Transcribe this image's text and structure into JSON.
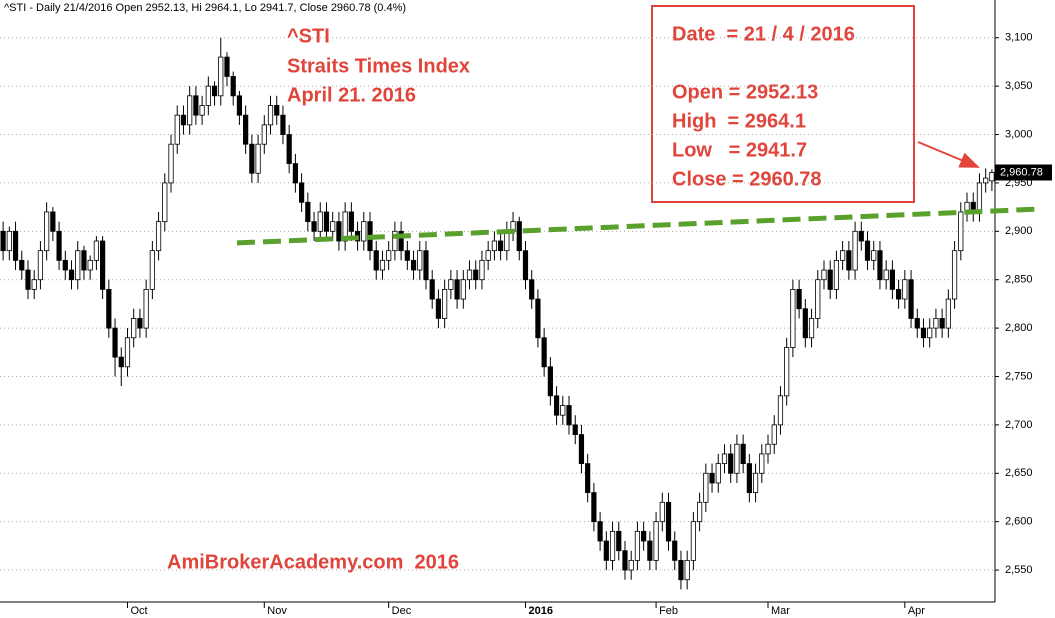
{
  "chart_data": {
    "type": "candlestick",
    "title": "^STI - Daily 21/4/2016 Open 2952.13, Hi 2964.1, Lo 2941.7, Close 2960.78 (0.4%)",
    "annotations": [
      "^STI",
      "Straits Times Index",
      "April 21. 2016"
    ],
    "info_box": [
      "Date  = 21 / 4 / 2016",
      "Open = 2952.13",
      "High  = 2964.1",
      "Low   = 2941.7",
      "Close = 2960.78"
    ],
    "watermark": "AmiBrokerAcademy.com  2016",
    "price_marker": {
      "value": 2960.78,
      "label": "2,960.78"
    },
    "trendline": {
      "color": "#5aa02c",
      "values": [
        2888,
        2923
      ]
    },
    "ylim": [
      2517,
      3139
    ],
    "yticks": [
      {
        "value": 2550,
        "label": "2,550"
      },
      {
        "value": 2600,
        "label": "2,600"
      },
      {
        "value": 2650,
        "label": "2,650"
      },
      {
        "value": 2700,
        "label": "2,700"
      },
      {
        "value": 2750,
        "label": "2,750"
      },
      {
        "value": 2800,
        "label": "2,800"
      },
      {
        "value": 2850,
        "label": "2,850"
      },
      {
        "value": 2900,
        "label": "2,900"
      },
      {
        "value": 2950,
        "label": "2,950"
      },
      {
        "value": 3000,
        "label": "3,000"
      },
      {
        "value": 3050,
        "label": "3,050"
      },
      {
        "value": 3100,
        "label": "3,100"
      }
    ],
    "grid": true,
    "categories": [
      null,
      null,
      null,
      null,
      null,
      null,
      null,
      null,
      null,
      null,
      null,
      null,
      null,
      null,
      null,
      null,
      null,
      null,
      null,
      null,
      "Oct",
      null,
      null,
      null,
      null,
      null,
      null,
      null,
      null,
      null,
      null,
      null,
      null,
      null,
      null,
      null,
      null,
      null,
      null,
      null,
      null,
      null,
      "Nov",
      null,
      null,
      null,
      null,
      null,
      null,
      null,
      null,
      null,
      null,
      null,
      null,
      null,
      null,
      null,
      null,
      null,
      null,
      null,
      "Dec",
      null,
      null,
      null,
      null,
      null,
      null,
      null,
      null,
      null,
      null,
      null,
      null,
      null,
      null,
      null,
      null,
      null,
      null,
      null,
      null,
      null,
      "2016",
      null,
      null,
      null,
      null,
      null,
      null,
      null,
      null,
      null,
      null,
      null,
      null,
      null,
      null,
      null,
      null,
      null,
      null,
      null,
      null,
      "Feb",
      null,
      null,
      null,
      null,
      null,
      null,
      null,
      null,
      null,
      null,
      null,
      null,
      null,
      null,
      null,
      null,
      null,
      "Mar",
      null,
      null,
      null,
      null,
      null,
      null,
      null,
      null,
      null,
      null,
      null,
      null,
      null,
      null,
      null,
      null,
      null,
      null,
      null,
      null,
      null,
      "Apr",
      null,
      null,
      null,
      null,
      null,
      null,
      null,
      null,
      null,
      null,
      null,
      null,
      null,
      null
    ],
    "open": [
      2900,
      2880,
      2900,
      2870,
      2860,
      2840,
      2850,
      2880,
      2920,
      2900,
      2870,
      2860,
      2850,
      2880,
      2860,
      2870,
      2890,
      2840,
      2800,
      2770,
      2760,
      2790,
      2810,
      2800,
      2840,
      2880,
      2910,
      2950,
      2990,
      3020,
      3010,
      3040,
      3020,
      3030,
      3050,
      3040,
      3080,
      3060,
      3040,
      3020,
      2990,
      2960,
      2990,
      3010,
      3030,
      3020,
      3000,
      2970,
      2950,
      2930,
      2910,
      2900,
      2920,
      2900,
      2910,
      2890,
      2920,
      2900,
      2890,
      2910,
      2880,
      2860,
      2870,
      2880,
      2900,
      2880,
      2870,
      2860,
      2880,
      2850,
      2830,
      2810,
      2840,
      2850,
      2830,
      2850,
      2860,
      2850,
      2870,
      2880,
      2890,
      2880,
      2900,
      2910,
      2880,
      2850,
      2830,
      2790,
      2760,
      2730,
      2710,
      2720,
      2700,
      2690,
      2660,
      2630,
      2600,
      2580,
      2560,
      2590,
      2570,
      2550,
      2560,
      2590,
      2580,
      2560,
      2600,
      2620,
      2580,
      2560,
      2540,
      2560,
      2600,
      2620,
      2650,
      2640,
      2660,
      2670,
      2650,
      2680,
      2660,
      2630,
      2650,
      2670,
      2680,
      2700,
      2730,
      2780,
      2840,
      2820,
      2790,
      2810,
      2850,
      2860,
      2840,
      2870,
      2880,
      2860,
      2900,
      2890,
      2870,
      2880,
      2850,
      2860,
      2840,
      2830,
      2850,
      2810,
      2800,
      2790,
      2800,
      2810,
      2800,
      2830,
      2880,
      2920,
      2930,
      2920,
      2950,
      2952.13
    ],
    "high": [
      2910,
      2905,
      2910,
      2880,
      2870,
      2860,
      2890,
      2930,
      2925,
      2910,
      2880,
      2870,
      2890,
      2885,
      2875,
      2895,
      2895,
      2850,
      2810,
      2780,
      2800,
      2820,
      2820,
      2850,
      2890,
      2920,
      2960,
      3000,
      3030,
      3030,
      3050,
      3050,
      3040,
      3060,
      3055,
      3100,
      3085,
      3065,
      3045,
      3030,
      3000,
      3000,
      3020,
      3040,
      3040,
      3030,
      3010,
      2980,
      2960,
      2940,
      2920,
      2930,
      2930,
      2920,
      2920,
      2930,
      2930,
      2910,
      2920,
      2920,
      2890,
      2880,
      2890,
      2910,
      2910,
      2890,
      2880,
      2890,
      2890,
      2860,
      2840,
      2850,
      2860,
      2860,
      2860,
      2870,
      2870,
      2880,
      2890,
      2900,
      2900,
      2910,
      2920,
      2915,
      2890,
      2860,
      2840,
      2800,
      2770,
      2740,
      2730,
      2730,
      2710,
      2700,
      2670,
      2640,
      2610,
      2590,
      2600,
      2600,
      2580,
      2570,
      2600,
      2600,
      2590,
      2610,
      2630,
      2630,
      2590,
      2570,
      2570,
      2610,
      2630,
      2660,
      2660,
      2670,
      2680,
      2680,
      2690,
      2690,
      2670,
      2660,
      2680,
      2690,
      2710,
      2740,
      2790,
      2850,
      2850,
      2830,
      2820,
      2860,
      2870,
      2870,
      2880,
      2890,
      2890,
      2910,
      2910,
      2900,
      2890,
      2890,
      2870,
      2870,
      2850,
      2860,
      2860,
      2820,
      2810,
      2810,
      2820,
      2820,
      2840,
      2890,
      2930,
      2940,
      2940,
      2960,
      2965,
      2964.1
    ],
    "low": [
      2870,
      2870,
      2860,
      2850,
      2830,
      2830,
      2840,
      2870,
      2890,
      2860,
      2850,
      2840,
      2840,
      2850,
      2850,
      2860,
      2830,
      2790,
      2750,
      2740,
      2750,
      2780,
      2790,
      2790,
      2830,
      2870,
      2900,
      2940,
      2980,
      3000,
      3000,
      3010,
      3010,
      3020,
      3030,
      3030,
      3050,
      3030,
      3010,
      2980,
      2950,
      2950,
      2980,
      3000,
      3010,
      2990,
      2960,
      2940,
      2920,
      2900,
      2890,
      2890,
      2890,
      2890,
      2880,
      2880,
      2890,
      2880,
      2880,
      2870,
      2850,
      2850,
      2860,
      2870,
      2870,
      2860,
      2850,
      2850,
      2840,
      2820,
      2800,
      2800,
      2830,
      2820,
      2820,
      2840,
      2840,
      2840,
      2860,
      2870,
      2870,
      2870,
      2890,
      2870,
      2840,
      2820,
      2780,
      2750,
      2720,
      2700,
      2700,
      2690,
      2680,
      2650,
      2620,
      2590,
      2570,
      2550,
      2550,
      2560,
      2540,
      2540,
      2550,
      2570,
      2550,
      2550,
      2590,
      2570,
      2550,
      2530,
      2530,
      2550,
      2590,
      2610,
      2630,
      2630,
      2650,
      2640,
      2640,
      2650,
      2620,
      2620,
      2640,
      2660,
      2670,
      2690,
      2720,
      2770,
      2810,
      2780,
      2780,
      2800,
      2840,
      2830,
      2830,
      2860,
      2850,
      2850,
      2880,
      2860,
      2860,
      2840,
      2840,
      2830,
      2820,
      2820,
      2800,
      2790,
      2780,
      2780,
      2790,
      2790,
      2790,
      2820,
      2870,
      2910,
      2910,
      2910,
      2940,
      2941.7
    ],
    "close": [
      2880,
      2900,
      2870,
      2860,
      2840,
      2850,
      2880,
      2920,
      2900,
      2870,
      2860,
      2850,
      2880,
      2860,
      2870,
      2890,
      2840,
      2800,
      2770,
      2760,
      2790,
      2810,
      2800,
      2840,
      2880,
      2910,
      2950,
      2990,
      3020,
      3010,
      3040,
      3020,
      3030,
      3050,
      3040,
      3080,
      3060,
      3040,
      3020,
      2990,
      2960,
      2990,
      3010,
      3030,
      3020,
      3000,
      2970,
      2950,
      2930,
      2910,
      2900,
      2920,
      2900,
      2910,
      2890,
      2920,
      2900,
      2890,
      2910,
      2880,
      2860,
      2870,
      2880,
      2900,
      2880,
      2870,
      2860,
      2880,
      2850,
      2830,
      2810,
      2840,
      2850,
      2830,
      2850,
      2860,
      2850,
      2870,
      2880,
      2890,
      2880,
      2900,
      2910,
      2880,
      2850,
      2830,
      2790,
      2760,
      2730,
      2710,
      2720,
      2700,
      2690,
      2660,
      2630,
      2600,
      2580,
      2560,
      2590,
      2570,
      2550,
      2560,
      2590,
      2580,
      2560,
      2600,
      2620,
      2580,
      2560,
      2540,
      2560,
      2600,
      2620,
      2650,
      2640,
      2660,
      2670,
      2650,
      2680,
      2660,
      2630,
      2650,
      2670,
      2680,
      2700,
      2730,
      2780,
      2840,
      2820,
      2790,
      2810,
      2850,
      2860,
      2840,
      2870,
      2880,
      2860,
      2900,
      2890,
      2870,
      2880,
      2850,
      2860,
      2840,
      2830,
      2850,
      2810,
      2800,
      2790,
      2800,
      2810,
      2800,
      2830,
      2880,
      2920,
      2930,
      2920,
      2950,
      2955,
      2960.78
    ]
  }
}
